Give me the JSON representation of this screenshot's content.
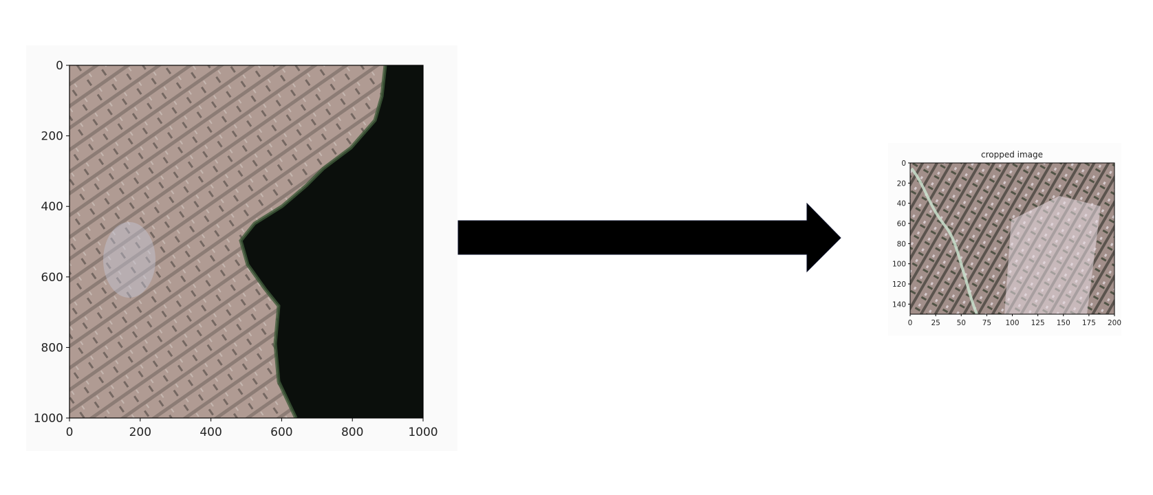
{
  "left_plot": {
    "x_ticks": [
      "0",
      "200",
      "400",
      "600",
      "800",
      "1000"
    ],
    "y_ticks": [
      "0",
      "200",
      "400",
      "600",
      "800",
      "1000"
    ],
    "extent": {
      "x": [
        0,
        1000
      ],
      "y": [
        0,
        1000
      ]
    },
    "colors": {
      "land": "#a88f85",
      "water": "#0b0f0c",
      "frame": "#000000"
    }
  },
  "arrow": {
    "color": "#000000"
  },
  "right_plot": {
    "title": "cropped image",
    "x_ticks": [
      "0",
      "25",
      "50",
      "75",
      "100",
      "125",
      "150",
      "175",
      "200"
    ],
    "y_ticks": [
      "0",
      "20",
      "40",
      "60",
      "80",
      "100",
      "120",
      "140"
    ],
    "extent": {
      "x": [
        0,
        200
      ],
      "y": [
        0,
        150
      ]
    },
    "colors": {
      "land": "#9c8782",
      "frame": "#000000"
    }
  }
}
